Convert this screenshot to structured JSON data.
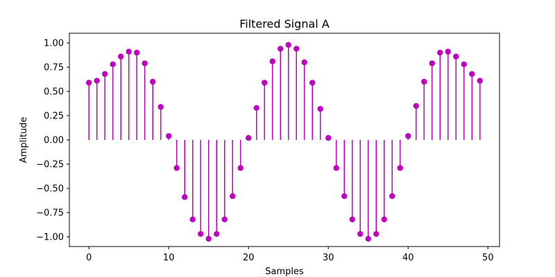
{
  "chart_data": {
    "type": "stem",
    "title": "Filtered Signal A",
    "xlabel": "Samples",
    "ylabel": "Amplitude",
    "xlim": [
      -2.45,
      51.45
    ],
    "ylim": [
      -1.1,
      1.1
    ],
    "xticks": [
      0,
      10,
      20,
      30,
      40,
      50
    ],
    "xtick_labels": [
      "0",
      "10",
      "20",
      "30",
      "40",
      "50"
    ],
    "yticks": [
      -1.0,
      -0.75,
      -0.5,
      -0.25,
      0.0,
      0.25,
      0.5,
      0.75,
      1.0
    ],
    "ytick_labels": [
      "−1.00",
      "−0.75",
      "−0.50",
      "−0.25",
      "0.00",
      "0.25",
      "0.50",
      "0.75",
      "1.00"
    ],
    "baseline": 0,
    "grid": false,
    "color": "#bf00bf",
    "series": [
      {
        "x": [
          0,
          1,
          2,
          3,
          4,
          5,
          6,
          7,
          8,
          9,
          10,
          11,
          12,
          13,
          14,
          15,
          16,
          17,
          18,
          19,
          20,
          21,
          22,
          23,
          24,
          25,
          26,
          27,
          28,
          29,
          30,
          31,
          32,
          33,
          34,
          35,
          36,
          37,
          38,
          39,
          40,
          41,
          42,
          43,
          44,
          45,
          46,
          47,
          48,
          49
        ],
        "values": [
          0.59,
          0.61,
          0.68,
          0.78,
          0.86,
          0.91,
          0.9,
          0.79,
          0.6,
          0.34,
          0.04,
          -0.29,
          -0.59,
          -0.82,
          -0.97,
          -1.02,
          -0.97,
          -0.82,
          -0.58,
          -0.29,
          0.02,
          0.33,
          0.59,
          0.81,
          0.94,
          0.98,
          0.94,
          0.8,
          0.59,
          0.32,
          0.02,
          -0.29,
          -0.58,
          -0.82,
          -0.97,
          -1.02,
          -0.97,
          -0.82,
          -0.58,
          -0.29,
          0.04,
          0.35,
          0.6,
          0.79,
          0.9,
          0.91,
          0.86,
          0.78,
          0.68,
          0.61
        ]
      }
    ]
  }
}
